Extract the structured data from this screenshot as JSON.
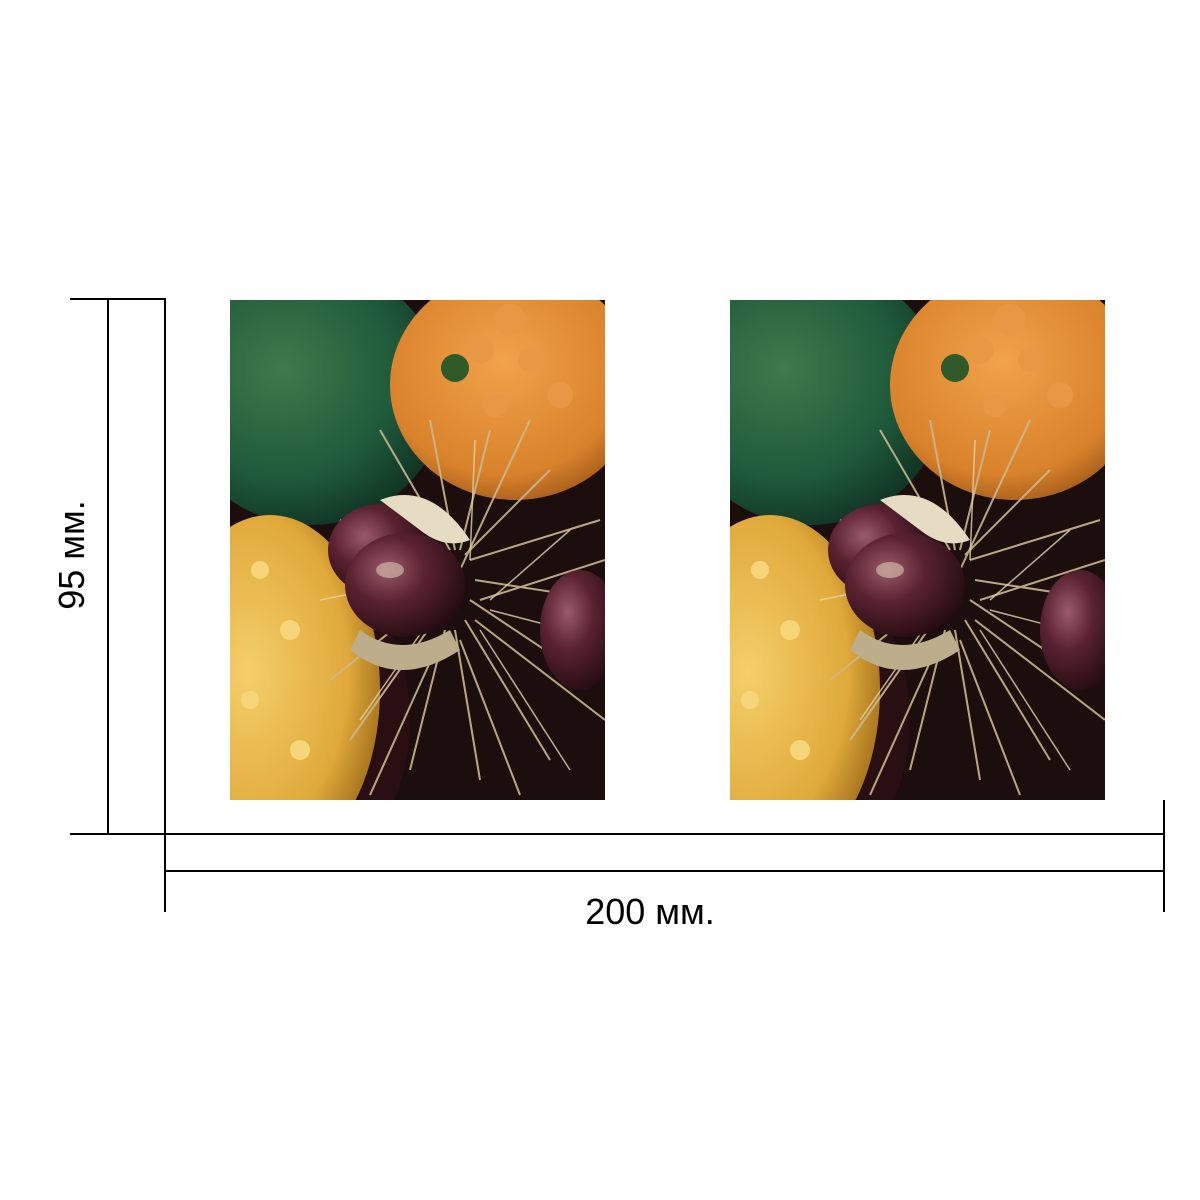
{
  "diagram": {
    "width_dimension": {
      "label": "200 мм."
    },
    "height_dimension": {
      "label": "95 мм."
    },
    "photos": [
      {
        "name": "photo-left",
        "subject": "chestnuts-and-gourds"
      },
      {
        "name": "photo-right",
        "subject": "chestnuts-and-gourds"
      }
    ],
    "colors": {
      "line": "#000000",
      "background": "#ffffff",
      "green_gourd": "#1f5a3c",
      "orange_gourd": "#d9822b",
      "yellow_gourd": "#e0a93a",
      "chestnut": "#4a1c22",
      "husk_spines": "#c9b98f"
    }
  }
}
